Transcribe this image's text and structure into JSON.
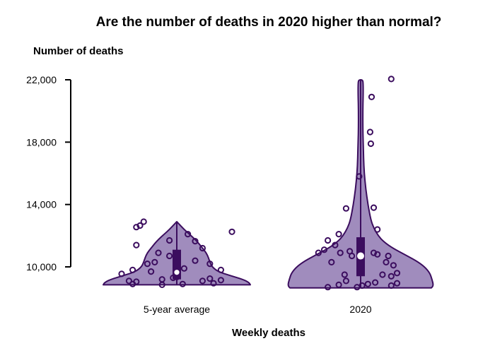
{
  "chart_data": {
    "type": "violin",
    "title": "Are the number of deaths in 2020 higher than normal?",
    "ylabel": "Number of deaths",
    "xlabel": "Weekly deaths",
    "ylim": [
      8500,
      22000
    ],
    "yticks": [
      {
        "value": 10000,
        "label": "10,000"
      },
      {
        "value": 14000,
        "label": "14,000"
      },
      {
        "value": 18000,
        "label": "18,000"
      },
      {
        "value": 22000,
        "label": "22,000"
      }
    ],
    "colors": {
      "violin_fill": "#a08cbd",
      "violin_stroke": "#3b0d5e",
      "box_fill": "#3b0d5e",
      "median_fill": "#ffffff",
      "point_stroke": "#3b0d5e",
      "axis": "#000000"
    },
    "groups": [
      {
        "name": "5-year average",
        "min": 8850,
        "max": 12900,
        "q1": 9200,
        "median": 9650,
        "q3": 11100,
        "density": [
          [
            8850,
            1.0
          ],
          [
            9000,
            0.98
          ],
          [
            9200,
            0.9
          ],
          [
            9450,
            0.72
          ],
          [
            9700,
            0.56
          ],
          [
            10000,
            0.48
          ],
          [
            10300,
            0.45
          ],
          [
            10600,
            0.43
          ],
          [
            10900,
            0.4
          ],
          [
            11200,
            0.35
          ],
          [
            11500,
            0.3
          ],
          [
            11800,
            0.24
          ],
          [
            12100,
            0.17
          ],
          [
            12400,
            0.1
          ],
          [
            12700,
            0.04
          ],
          [
            12900,
            0.0
          ]
        ],
        "points": [
          [
            -0.55,
            12550
          ],
          [
            -0.5,
            12650
          ],
          [
            -0.45,
            12900
          ],
          [
            0.15,
            12100
          ],
          [
            0.75,
            12250
          ],
          [
            -0.1,
            11700
          ],
          [
            0.25,
            11650
          ],
          [
            -0.55,
            11400
          ],
          [
            0.35,
            11200
          ],
          [
            -0.1,
            10700
          ],
          [
            -0.25,
            10900
          ],
          [
            0.25,
            10400
          ],
          [
            -0.4,
            10200
          ],
          [
            -0.3,
            10300
          ],
          [
            0.45,
            10200
          ],
          [
            -0.6,
            9800
          ],
          [
            -0.35,
            9700
          ],
          [
            0.1,
            9900
          ],
          [
            0.6,
            9800
          ],
          [
            -0.75,
            9550
          ],
          [
            -0.65,
            9100
          ],
          [
            -0.55,
            9050
          ],
          [
            -0.6,
            8900
          ],
          [
            -0.2,
            8850
          ],
          [
            -0.2,
            9200
          ],
          [
            0.0,
            9350
          ],
          [
            0.35,
            9100
          ],
          [
            0.45,
            9250
          ],
          [
            0.6,
            9150
          ],
          [
            0.5,
            8950
          ],
          [
            0.08,
            8900
          ],
          [
            -0.05,
            9300
          ]
        ]
      },
      {
        "name": "2020",
        "min": 8650,
        "max": 22000,
        "q1": 9400,
        "median": 10700,
        "q3": 11900,
        "density": [
          [
            8650,
            0.97
          ],
          [
            8800,
            1.0
          ],
          [
            9200,
            0.98
          ],
          [
            9600,
            0.95
          ],
          [
            10000,
            0.88
          ],
          [
            10400,
            0.76
          ],
          [
            10800,
            0.6
          ],
          [
            11200,
            0.44
          ],
          [
            11600,
            0.32
          ],
          [
            12000,
            0.24
          ],
          [
            12500,
            0.18
          ],
          [
            13000,
            0.14
          ],
          [
            14000,
            0.1
          ],
          [
            15000,
            0.07
          ],
          [
            16000,
            0.05
          ],
          [
            17000,
            0.04
          ],
          [
            18000,
            0.035
          ],
          [
            19000,
            0.03
          ],
          [
            20000,
            0.03
          ],
          [
            21000,
            0.035
          ],
          [
            21700,
            0.035
          ],
          [
            22000,
            0.03
          ]
        ],
        "points": [
          [
            0.42,
            22050
          ],
          [
            0.15,
            20900
          ],
          [
            0.13,
            18650
          ],
          [
            0.14,
            17900
          ],
          [
            -0.02,
            15800
          ],
          [
            -0.2,
            13750
          ],
          [
            0.18,
            13800
          ],
          [
            0.23,
            12400
          ],
          [
            -0.3,
            12100
          ],
          [
            -0.45,
            11700
          ],
          [
            -0.5,
            11100
          ],
          [
            -0.58,
            10900
          ],
          [
            -0.35,
            11400
          ],
          [
            -0.15,
            11000
          ],
          [
            -0.28,
            10900
          ],
          [
            -0.12,
            10700
          ],
          [
            0.18,
            10900
          ],
          [
            0.23,
            10800
          ],
          [
            0.38,
            10700
          ],
          [
            -0.4,
            10300
          ],
          [
            0.35,
            10300
          ],
          [
            0.45,
            10100
          ],
          [
            -0.22,
            9500
          ],
          [
            -0.2,
            9100
          ],
          [
            0.3,
            9500
          ],
          [
            0.42,
            9400
          ],
          [
            0.5,
            9600
          ],
          [
            -0.45,
            8700
          ],
          [
            -0.3,
            8850
          ],
          [
            -0.05,
            8700
          ],
          [
            0.02,
            8800
          ],
          [
            0.1,
            8900
          ],
          [
            0.2,
            9000
          ],
          [
            0.42,
            8800
          ],
          [
            0.5,
            8950
          ]
        ]
      }
    ]
  }
}
